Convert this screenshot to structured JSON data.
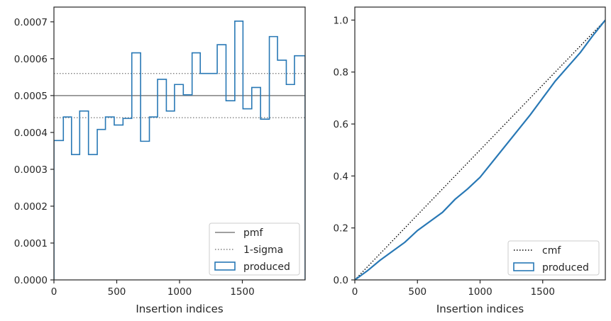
{
  "chart_data": [
    {
      "type": "histogram-step",
      "xlabel": "Insertion indices",
      "ylabel": "",
      "xlim": [
        0,
        2000
      ],
      "ylim": [
        0,
        0.00074
      ],
      "xticks": [
        0,
        500,
        1000,
        1500
      ],
      "xtick_labels": [
        "0",
        "500",
        "1000",
        "1500"
      ],
      "yticks": [
        0,
        0.0001,
        0.0002,
        0.0003,
        0.0004,
        0.0005,
        0.0006,
        0.0007
      ],
      "ytick_labels": [
        "0.0000",
        "0.0001",
        "0.0002",
        "0.0003",
        "0.0004",
        "0.0005",
        "0.0006",
        "0.0007"
      ],
      "grid": false,
      "legend_position": "lower right",
      "reference_lines": [
        {
          "name": "pmf",
          "y": 0.0005,
          "style": "solid",
          "color": "#808080"
        },
        {
          "name": "1-sigma",
          "y": 0.00044,
          "style": "dotted",
          "color": "#808080"
        },
        {
          "name": "1-sigma",
          "y": 0.00056,
          "style": "dotted",
          "color": "#808080"
        }
      ],
      "series": [
        {
          "name": "produced",
          "color": "#2878b5",
          "bin_edges": [
            0,
            75,
            140,
            205,
            275,
            345,
            410,
            480,
            550,
            620,
            690,
            760,
            825,
            895,
            960,
            1030,
            1100,
            1165,
            1300,
            1370,
            1440,
            1505,
            1575,
            1645,
            1715,
            1780,
            1850,
            1915,
            2000
          ],
          "values": [
            0.000378,
            0.000442,
            0.00034,
            0.000458,
            0.00034,
            0.000408,
            0.000442,
            0.00042,
            0.000438,
            0.000616,
            0.000376,
            0.000442,
            0.000544,
            0.000458,
            0.00053,
            0.000502,
            0.000616,
            0.00056,
            0.000638,
            0.000486,
            0.000702,
            0.000464,
            0.000522,
            0.000436,
            0.00066,
            0.000596,
            0.00053,
            0.000608
          ]
        }
      ],
      "legend": [
        "pmf",
        "1-sigma",
        "produced"
      ]
    },
    {
      "type": "line",
      "xlabel": "Insertion indices",
      "ylabel": "",
      "xlim": [
        0,
        2000
      ],
      "ylim": [
        0,
        1.05
      ],
      "xticks": [
        0,
        500,
        1000,
        1500
      ],
      "xtick_labels": [
        "0",
        "500",
        "1000",
        "1500"
      ],
      "yticks": [
        0,
        0.2,
        0.4,
        0.6,
        0.8,
        1.0
      ],
      "ytick_labels": [
        "0.0",
        "0.2",
        "0.4",
        "0.6",
        "0.8",
        "1.0"
      ],
      "grid": false,
      "legend_position": "lower right",
      "series": [
        {
          "name": "cmf",
          "style": "dotted",
          "color": "#000000",
          "x": [
            0,
            2000
          ],
          "y": [
            0,
            1.0
          ]
        },
        {
          "name": "produced",
          "style": "solid",
          "color": "#2878b5",
          "x": [
            0,
            100,
            200,
            300,
            400,
            500,
            600,
            700,
            800,
            900,
            1000,
            1100,
            1200,
            1300,
            1400,
            1500,
            1600,
            1700,
            1800,
            1900,
            2000
          ],
          "y": [
            0,
            0.035,
            0.075,
            0.11,
            0.145,
            0.19,
            0.225,
            0.26,
            0.31,
            0.35,
            0.395,
            0.455,
            0.515,
            0.575,
            0.635,
            0.7,
            0.765,
            0.82,
            0.875,
            0.94,
            1.0
          ]
        }
      ],
      "legend": [
        "cmf",
        "produced"
      ]
    }
  ]
}
